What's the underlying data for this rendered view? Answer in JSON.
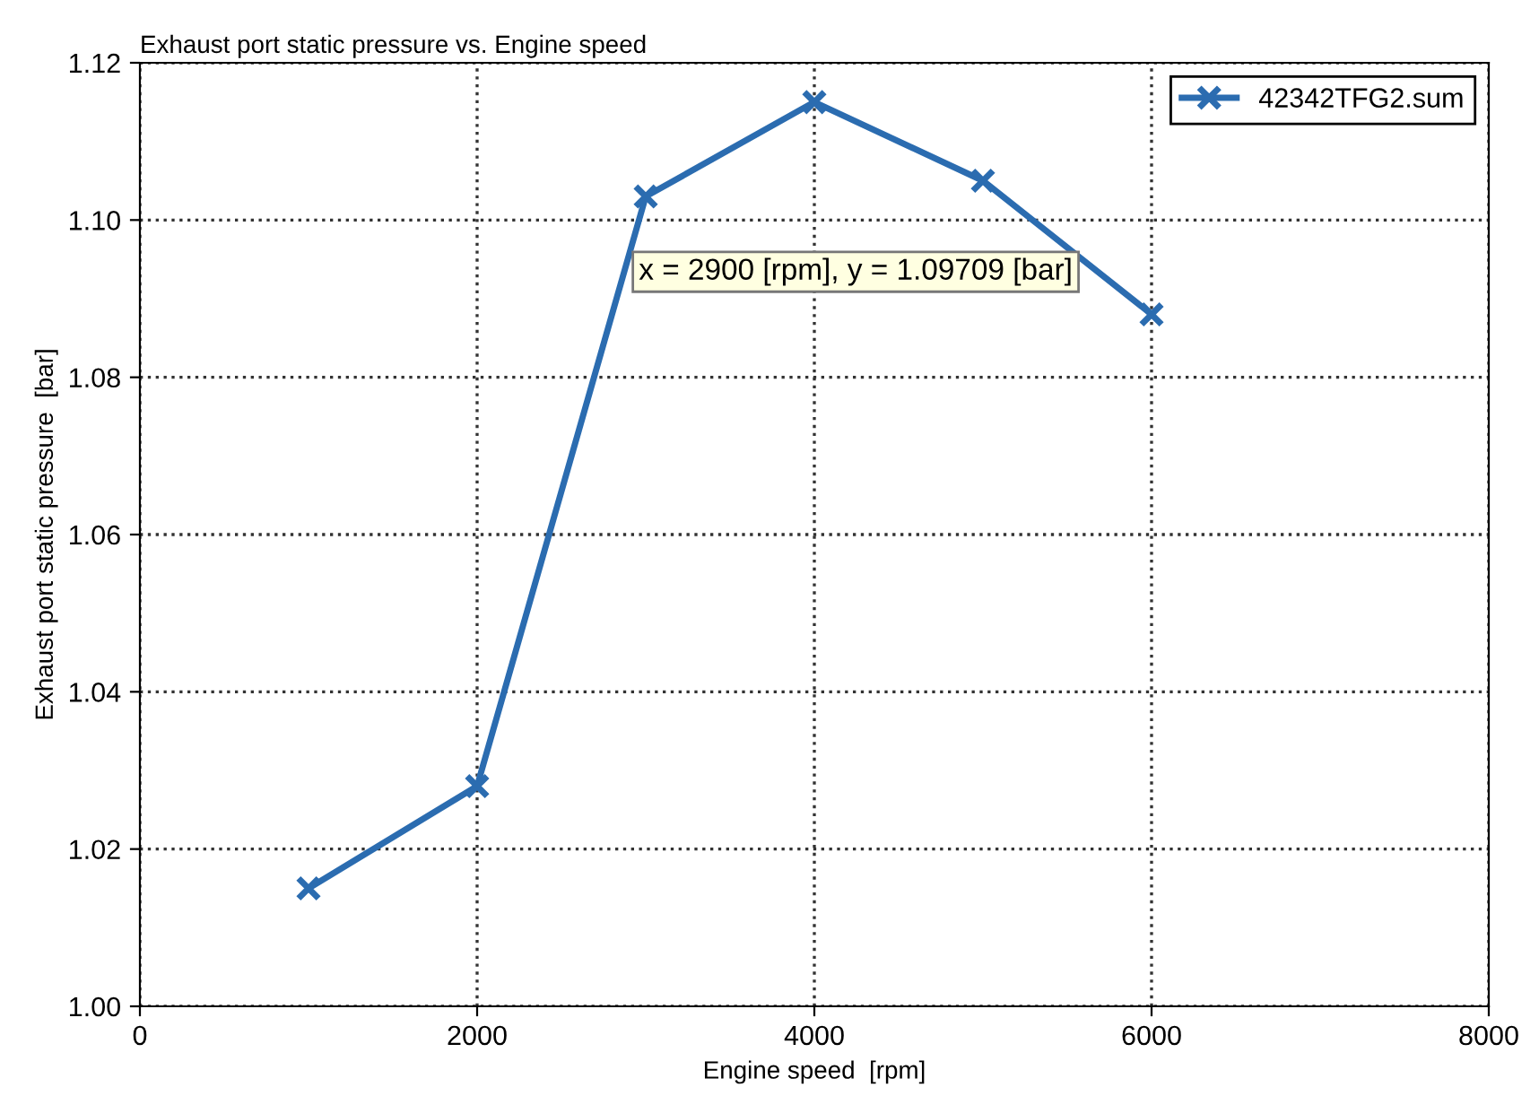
{
  "chart_data": {
    "type": "line",
    "title": "Exhaust port static pressure vs. Engine speed",
    "xlabel": "Engine speed  [rpm]",
    "ylabel": "Exhaust port static pressure  [bar]",
    "x": [
      1000,
      2000,
      3000,
      4000,
      5000,
      6000
    ],
    "series": [
      {
        "name": "42342TFG2.sum",
        "color": "#2b6cb0",
        "values": [
          1.015,
          1.028,
          1.103,
          1.115,
          1.105,
          1.088
        ]
      }
    ],
    "xlim": [
      0,
      8000
    ],
    "xticks": [
      0,
      2000,
      4000,
      6000,
      8000
    ],
    "ylim": [
      1.0,
      1.12
    ],
    "yticks": [
      {
        "value": 1.0,
        "label": "1.00"
      },
      {
        "value": 1.02,
        "label": "1.02"
      },
      {
        "value": 1.04,
        "label": "1.04"
      },
      {
        "value": 1.06,
        "label": "1.06"
      },
      {
        "value": 1.08,
        "label": "1.08"
      },
      {
        "value": 1.1,
        "label": "1.10"
      },
      {
        "value": 1.12,
        "label": "1.12"
      }
    ],
    "annotations": [
      {
        "text": "x = 2900 [rpm], y = 1.09709 [bar]",
        "x": 2900,
        "y": 1.09709
      }
    ],
    "grid": true,
    "legend": "top right",
    "marker": "cross",
    "line_style": "solid"
  }
}
